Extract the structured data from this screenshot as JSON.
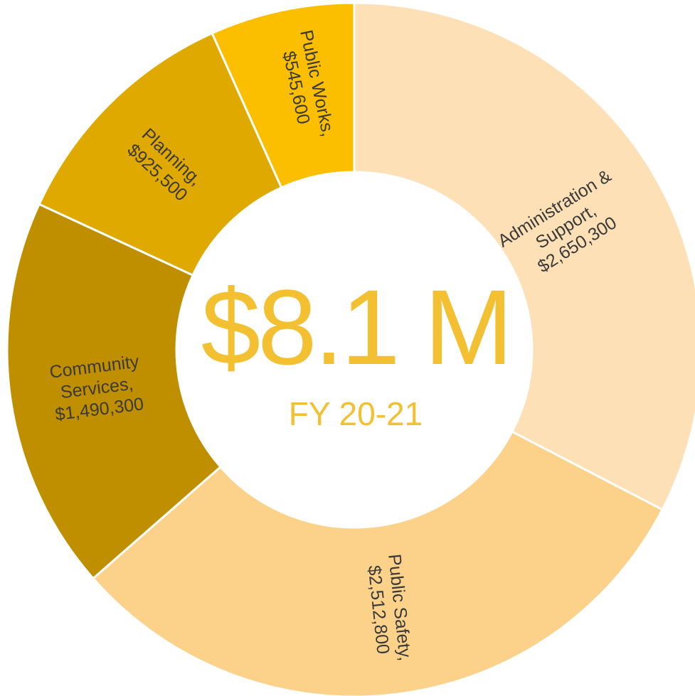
{
  "chart_data": {
    "type": "pie",
    "style": "donut",
    "center": {
      "total": "$8.1 M",
      "subtitle": "FY 20-21"
    },
    "slices": [
      {
        "label_lines": [
          "Administration &",
          "Support,",
          "$2,650,300"
        ],
        "value": 2650300,
        "color": "#fde0b6"
      },
      {
        "label_lines": [
          "Public Safety,",
          "$2,512,800"
        ],
        "value": 2512800,
        "color": "#fcd28a"
      },
      {
        "label_lines": [
          "Community",
          "Services,",
          "$1,490,300"
        ],
        "value": 1490300,
        "color": "#c08f00"
      },
      {
        "label_lines": [
          "Planning,",
          "$925,500"
        ],
        "value": 925500,
        "color": "#e0a900"
      },
      {
        "label_lines": [
          "Public Works,",
          "$545,600"
        ],
        "value": 545600,
        "color": "#fbbf00"
      }
    ]
  }
}
